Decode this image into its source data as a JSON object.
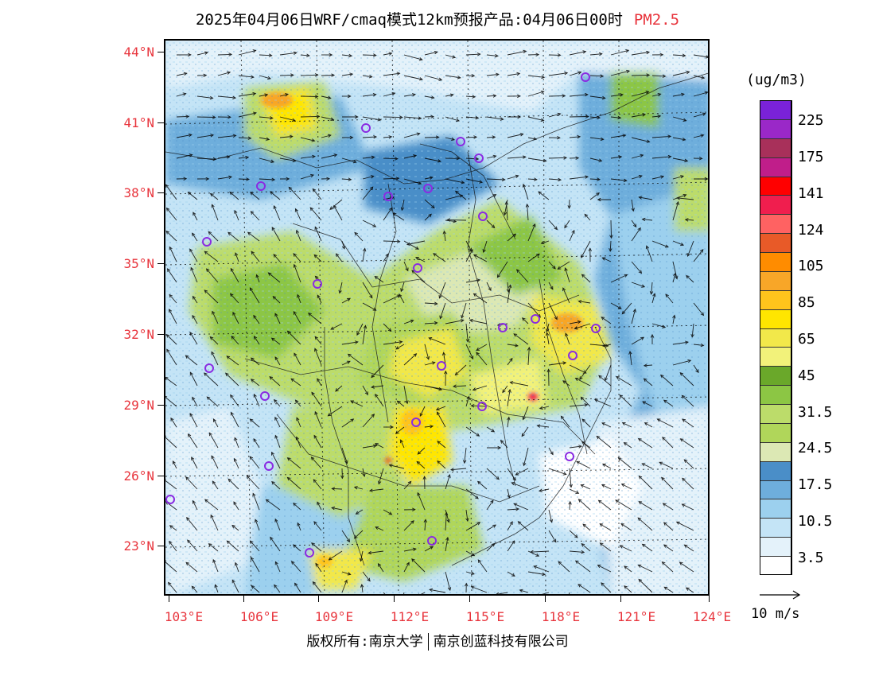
{
  "title": {
    "text": "2025年04月06日WRF/cmaq模式12km预报产品:04月06日00时",
    "product": "PM2.5"
  },
  "map": {
    "lat_labels": [
      "44°N",
      "41°N",
      "38°N",
      "35°N",
      "32°N",
      "29°N",
      "26°N",
      "23°N"
    ],
    "lon_labels": [
      "103°E",
      "106°E",
      "109°E",
      "112°E",
      "115°E",
      "118°E",
      "121°E",
      "124°E"
    ],
    "station_marker": "circle-icon"
  },
  "colorbar": {
    "unit": "(ug/m3)",
    "labels": [
      "225",
      "175",
      "141",
      "124",
      "105",
      "85",
      "65",
      "45",
      "31.5",
      "24.5",
      "17.5",
      "10.5",
      "3.5"
    ],
    "colors": [
      "#7a22d8",
      "#9a28c8",
      "#a8305a",
      "#c01e8a",
      "#ff0000",
      "#f01e4e",
      "#ff6262",
      "#e85a28",
      "#ff8c00",
      "#f8a628",
      "#ffc41c",
      "#ffe600",
      "#f2e84a",
      "#f2f27a",
      "#6aa82a",
      "#8cc644",
      "#bcdc6a",
      "#b0d65a",
      "#dce8b4",
      "#4a8ec8",
      "#6eaedc",
      "#9cd0ee",
      "#c4e4f6",
      "#e4f2fa",
      "#ffffff"
    ]
  },
  "wind_reference": {
    "label": "10 m/s"
  },
  "credits": {
    "left": "版权所有:南京大学",
    "right": "南京创蓝科技有限公司"
  }
}
